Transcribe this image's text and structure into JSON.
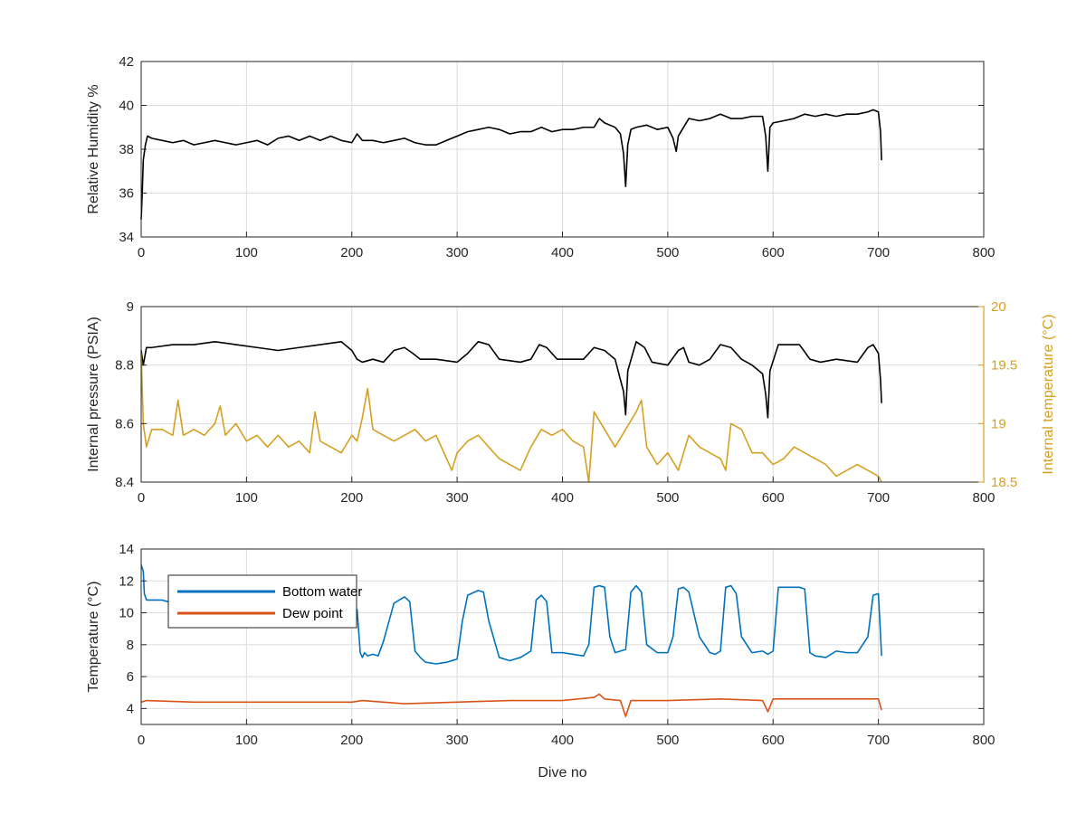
{
  "chart_data": [
    {
      "type": "line",
      "ylabel": "Relative Humidity %",
      "xlim": [
        0,
        800
      ],
      "ylim": [
        34,
        42
      ],
      "xticks": [
        "0",
        "100",
        "200",
        "300",
        "400",
        "500",
        "600",
        "700",
        "800"
      ],
      "yticks": [
        "34",
        "36",
        "38",
        "40",
        "42"
      ],
      "grid": true,
      "series": [
        {
          "color": "#000000",
          "x": [
            0,
            1,
            2,
            4,
            6,
            10,
            20,
            30,
            40,
            50,
            60,
            70,
            80,
            90,
            100,
            110,
            120,
            130,
            140,
            150,
            160,
            170,
            180,
            190,
            200,
            205,
            210,
            220,
            230,
            240,
            250,
            260,
            270,
            280,
            290,
            300,
            310,
            320,
            330,
            340,
            350,
            360,
            370,
            380,
            390,
            400,
            410,
            420,
            430,
            435,
            440,
            450,
            455,
            458,
            460,
            462,
            465,
            470,
            480,
            490,
            500,
            505,
            508,
            510,
            520,
            530,
            540,
            550,
            560,
            570,
            580,
            590,
            593,
            595,
            597,
            600,
            610,
            620,
            630,
            640,
            650,
            660,
            670,
            680,
            690,
            695,
            700,
            702,
            703
          ],
          "y": [
            34.8,
            36.0,
            37.5,
            38.2,
            38.6,
            38.5,
            38.4,
            38.3,
            38.4,
            38.2,
            38.3,
            38.4,
            38.3,
            38.2,
            38.3,
            38.4,
            38.2,
            38.5,
            38.6,
            38.4,
            38.6,
            38.4,
            38.6,
            38.4,
            38.3,
            38.7,
            38.4,
            38.4,
            38.3,
            38.4,
            38.5,
            38.3,
            38.2,
            38.2,
            38.4,
            38.6,
            38.8,
            38.9,
            39.0,
            38.9,
            38.7,
            38.8,
            38.8,
            39.0,
            38.8,
            38.9,
            38.9,
            39.0,
            39.0,
            39.4,
            39.2,
            39.0,
            38.7,
            37.8,
            36.3,
            38.2,
            38.9,
            39.0,
            39.1,
            38.9,
            39.0,
            38.5,
            37.9,
            38.6,
            39.4,
            39.3,
            39.4,
            39.6,
            39.4,
            39.4,
            39.5,
            39.5,
            38.6,
            37.0,
            39.0,
            39.2,
            39.3,
            39.4,
            39.6,
            39.5,
            39.6,
            39.5,
            39.6,
            39.6,
            39.7,
            39.8,
            39.7,
            38.8,
            37.5
          ]
        }
      ]
    },
    {
      "type": "line",
      "ylabel": "Internal pressure (PSIA)",
      "y2label": "Internal temperature (°C)",
      "xlim": [
        0,
        800
      ],
      "ylim": [
        8.4,
        9
      ],
      "y2lim": [
        18.5,
        20
      ],
      "xticks": [
        "0",
        "100",
        "200",
        "300",
        "400",
        "500",
        "600",
        "700",
        "800"
      ],
      "yticks": [
        "8.4",
        "8.6",
        "8.8",
        "9"
      ],
      "y2ticks": [
        "18.5",
        "19",
        "19.5",
        "20"
      ],
      "grid": true,
      "series": [
        {
          "axis": "left",
          "color": "#000000",
          "x": [
            0,
            2,
            5,
            10,
            30,
            50,
            70,
            90,
            110,
            130,
            150,
            170,
            190,
            200,
            205,
            210,
            220,
            230,
            240,
            250,
            258,
            265,
            280,
            300,
            310,
            320,
            330,
            340,
            360,
            370,
            378,
            385,
            395,
            420,
            430,
            440,
            450,
            455,
            458,
            460,
            462,
            470,
            478,
            485,
            500,
            510,
            515,
            520,
            530,
            540,
            550,
            560,
            570,
            580,
            590,
            593,
            595,
            597,
            605,
            615,
            625,
            635,
            645,
            660,
            680,
            690,
            695,
            700,
            702,
            703
          ],
          "y": [
            8.85,
            8.8,
            8.86,
            8.86,
            8.87,
            8.87,
            8.88,
            8.87,
            8.86,
            8.85,
            8.86,
            8.87,
            8.88,
            8.85,
            8.82,
            8.81,
            8.82,
            8.81,
            8.85,
            8.86,
            8.84,
            8.82,
            8.82,
            8.81,
            8.84,
            8.88,
            8.87,
            8.82,
            8.81,
            8.82,
            8.87,
            8.86,
            8.82,
            8.82,
            8.86,
            8.85,
            8.82,
            8.75,
            8.71,
            8.63,
            8.78,
            8.88,
            8.86,
            8.81,
            8.8,
            8.85,
            8.86,
            8.81,
            8.8,
            8.82,
            8.87,
            8.86,
            8.82,
            8.8,
            8.77,
            8.7,
            8.62,
            8.78,
            8.87,
            8.87,
            8.87,
            8.82,
            8.81,
            8.82,
            8.81,
            8.86,
            8.87,
            8.84,
            8.75,
            8.67
          ]
        },
        {
          "axis": "right",
          "color": "#D5A021",
          "x": [
            0,
            2,
            5,
            10,
            20,
            30,
            35,
            40,
            50,
            60,
            70,
            75,
            80,
            90,
            100,
            110,
            120,
            130,
            140,
            150,
            160,
            165,
            170,
            180,
            190,
            200,
            205,
            210,
            215,
            220,
            230,
            240,
            250,
            260,
            270,
            280,
            290,
            295,
            300,
            310,
            320,
            330,
            340,
            350,
            360,
            370,
            380,
            390,
            400,
            410,
            420,
            425,
            430,
            440,
            450,
            460,
            470,
            475,
            480,
            490,
            500,
            510,
            520,
            530,
            540,
            550,
            555,
            560,
            570,
            580,
            590,
            600,
            610,
            620,
            630,
            640,
            650,
            660,
            670,
            680,
            690,
            700,
            703
          ],
          "y": [
            19.6,
            19.0,
            18.8,
            18.95,
            18.95,
            18.9,
            19.2,
            18.9,
            18.95,
            18.9,
            19.0,
            19.15,
            18.9,
            19.0,
            18.85,
            18.9,
            18.8,
            18.9,
            18.8,
            18.85,
            18.75,
            19.1,
            18.85,
            18.8,
            18.75,
            18.9,
            18.85,
            19.05,
            19.3,
            18.95,
            18.9,
            18.85,
            18.9,
            18.95,
            18.85,
            18.9,
            18.7,
            18.6,
            18.75,
            18.85,
            18.9,
            18.8,
            18.7,
            18.65,
            18.6,
            18.8,
            18.95,
            18.9,
            18.95,
            18.85,
            18.8,
            18.5,
            19.1,
            18.95,
            18.8,
            18.95,
            19.1,
            19.2,
            18.8,
            18.65,
            18.75,
            18.6,
            18.9,
            18.8,
            18.75,
            18.7,
            18.6,
            19.0,
            18.95,
            18.75,
            18.75,
            18.65,
            18.7,
            18.8,
            18.75,
            18.7,
            18.65,
            18.55,
            18.6,
            18.65,
            18.6,
            18.55,
            18.5
          ]
        }
      ]
    },
    {
      "type": "line",
      "ylabel": "Temperature (°C)",
      "xlabel": "Dive no",
      "xlim": [
        0,
        800
      ],
      "ylim": [
        3,
        14
      ],
      "xticks": [
        "0",
        "100",
        "200",
        "300",
        "400",
        "500",
        "600",
        "700",
        "800"
      ],
      "yticks": [
        "4",
        "6",
        "8",
        "10",
        "12",
        "14"
      ],
      "grid": true,
      "legend": {
        "position": "top-left",
        "entries": [
          "Bottom water",
          "Dew point"
        ]
      },
      "series": [
        {
          "name": "Bottom water",
          "color": "#0072BD",
          "x": [
            0,
            2,
            3,
            5,
            20,
            30,
            40,
            60,
            80,
            100,
            120,
            140,
            160,
            180,
            200,
            205,
            208,
            210,
            212,
            215,
            220,
            225,
            230,
            240,
            250,
            255,
            260,
            265,
            270,
            280,
            290,
            300,
            305,
            310,
            320,
            325,
            330,
            340,
            350,
            360,
            370,
            375,
            380,
            385,
            390,
            400,
            410,
            420,
            425,
            430,
            435,
            440,
            445,
            450,
            460,
            465,
            470,
            475,
            480,
            490,
            500,
            505,
            510,
            515,
            520,
            530,
            540,
            545,
            550,
            555,
            560,
            565,
            570,
            580,
            590,
            595,
            600,
            605,
            610,
            620,
            625,
            630,
            635,
            640,
            650,
            660,
            670,
            680,
            690,
            695,
            700,
            703
          ],
          "y": [
            13.0,
            12.6,
            11.2,
            10.8,
            10.8,
            10.6,
            10.5,
            10.6,
            10.5,
            10.5,
            10.5,
            10.5,
            10.6,
            10.5,
            10.6,
            10.2,
            7.5,
            7.2,
            7.5,
            7.3,
            7.4,
            7.3,
            8.2,
            10.6,
            11.0,
            10.7,
            7.6,
            7.2,
            6.9,
            6.8,
            6.9,
            7.1,
            9.5,
            11.1,
            11.4,
            11.3,
            9.5,
            7.2,
            7.0,
            7.2,
            7.6,
            10.8,
            11.1,
            10.7,
            7.5,
            7.5,
            7.4,
            7.3,
            8.0,
            11.6,
            11.7,
            11.6,
            8.5,
            7.5,
            7.7,
            11.3,
            11.7,
            11.3,
            8.0,
            7.5,
            7.5,
            8.5,
            11.5,
            11.6,
            11.3,
            8.5,
            7.5,
            7.4,
            7.6,
            11.6,
            11.7,
            11.2,
            8.5,
            7.5,
            7.6,
            7.4,
            7.6,
            11.6,
            11.6,
            11.6,
            11.6,
            11.5,
            7.5,
            7.3,
            7.2,
            7.6,
            7.5,
            7.5,
            8.5,
            11.1,
            11.2,
            7.3
          ]
        },
        {
          "name": "Dew point",
          "color": "#D95319",
          "x": [
            0,
            5,
            50,
            100,
            150,
            200,
            210,
            250,
            300,
            350,
            400,
            430,
            435,
            440,
            455,
            460,
            465,
            500,
            550,
            590,
            595,
            600,
            650,
            700,
            703
          ],
          "y": [
            4.4,
            4.5,
            4.4,
            4.4,
            4.4,
            4.4,
            4.5,
            4.3,
            4.4,
            4.5,
            4.5,
            4.7,
            4.9,
            4.6,
            4.5,
            3.5,
            4.5,
            4.5,
            4.6,
            4.5,
            3.8,
            4.6,
            4.6,
            4.6,
            3.9
          ]
        }
      ]
    }
  ]
}
